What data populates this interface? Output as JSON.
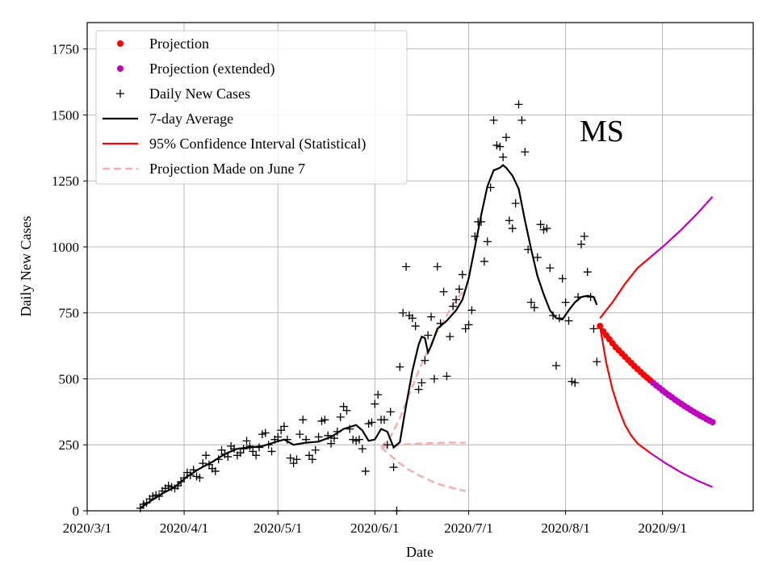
{
  "chart_data": {
    "type": "line",
    "annotation": "MS",
    "xlabel": "Date",
    "ylabel": "Daily New Cases",
    "xlim_days": [
      0,
      213
    ],
    "ylim": [
      0,
      1850
    ],
    "grid": true,
    "legend_position": "top-left",
    "x_ticks": [
      {
        "day": 0,
        "label": "2020/3/1"
      },
      {
        "day": 31,
        "label": "2020/4/1"
      },
      {
        "day": 61,
        "label": "2020/5/1"
      },
      {
        "day": 92,
        "label": "2020/6/1"
      },
      {
        "day": 122,
        "label": "2020/7/1"
      },
      {
        "day": 153,
        "label": "2020/8/1"
      },
      {
        "day": 184,
        "label": "2020/9/1"
      }
    ],
    "y_ticks": [
      {
        "value": 0,
        "label": "0"
      },
      {
        "value": 250,
        "label": "250"
      },
      {
        "value": 500,
        "label": "500"
      },
      {
        "value": 750,
        "label": "750"
      },
      {
        "value": 1000,
        "label": "1000"
      },
      {
        "value": 1250,
        "label": "1250"
      },
      {
        "value": 1500,
        "label": "1500"
      },
      {
        "value": 1750,
        "label": "1750"
      }
    ],
    "legend": [
      {
        "label": "Projection",
        "style": "dot",
        "color": "#ff0000"
      },
      {
        "label": "Projection (extended)",
        "style": "dot",
        "color": "#bf00bf"
      },
      {
        "label": "Daily New Cases",
        "style": "plus",
        "color": "#000000"
      },
      {
        "label": "7-day Average",
        "style": "line",
        "color": "#000000"
      },
      {
        "label": "95% Confidence Interval (Statistical)",
        "style": "line",
        "color": "#ff0000"
      },
      {
        "label": "Projection Made on June 7",
        "style": "dashed",
        "color": "#f4b0b0"
      }
    ],
    "daily_new_cases": [
      [
        17,
        10
      ],
      [
        18,
        25
      ],
      [
        19,
        30
      ],
      [
        20,
        45
      ],
      [
        21,
        55
      ],
      [
        22,
        60
      ],
      [
        23,
        55
      ],
      [
        24,
        75
      ],
      [
        25,
        85
      ],
      [
        26,
        95
      ],
      [
        27,
        90
      ],
      [
        28,
        85
      ],
      [
        29,
        95
      ],
      [
        30,
        110
      ],
      [
        31,
        125
      ],
      [
        32,
        145
      ],
      [
        33,
        135
      ],
      [
        34,
        155
      ],
      [
        35,
        130
      ],
      [
        36,
        125
      ],
      [
        37,
        180
      ],
      [
        38,
        210
      ],
      [
        39,
        175
      ],
      [
        40,
        160
      ],
      [
        41,
        150
      ],
      [
        42,
        195
      ],
      [
        43,
        230
      ],
      [
        44,
        215
      ],
      [
        45,
        205
      ],
      [
        46,
        245
      ],
      [
        47,
        235
      ],
      [
        48,
        210
      ],
      [
        49,
        220
      ],
      [
        50,
        235
      ],
      [
        51,
        265
      ],
      [
        52,
        245
      ],
      [
        53,
        225
      ],
      [
        54,
        210
      ],
      [
        55,
        240
      ],
      [
        56,
        290
      ],
      [
        57,
        295
      ],
      [
        58,
        250
      ],
      [
        59,
        225
      ],
      [
        60,
        270
      ],
      [
        61,
        280
      ],
      [
        62,
        305
      ],
      [
        63,
        320
      ],
      [
        64,
        270
      ],
      [
        65,
        200
      ],
      [
        66,
        180
      ],
      [
        67,
        195
      ],
      [
        68,
        290
      ],
      [
        69,
        345
      ],
      [
        70,
        270
      ],
      [
        71,
        210
      ],
      [
        72,
        195
      ],
      [
        73,
        230
      ],
      [
        74,
        280
      ],
      [
        75,
        340
      ],
      [
        76,
        345
      ],
      [
        77,
        285
      ],
      [
        78,
        255
      ],
      [
        79,
        275
      ],
      [
        80,
        300
      ],
      [
        81,
        355
      ],
      [
        82,
        395
      ],
      [
        83,
        380
      ],
      [
        84,
        310
      ],
      [
        85,
        270
      ],
      [
        86,
        265
      ],
      [
        87,
        270
      ],
      [
        88,
        235
      ],
      [
        89,
        150
      ],
      [
        90,
        330
      ],
      [
        91,
        335
      ],
      [
        92,
        405
      ],
      [
        93,
        440
      ],
      [
        94,
        345
      ],
      [
        95,
        345
      ],
      [
        96,
        250
      ],
      [
        97,
        375
      ],
      [
        98,
        165
      ],
      [
        99,
        0
      ],
      [
        100,
        545
      ],
      [
        101,
        750
      ],
      [
        102,
        925
      ],
      [
        103,
        740
      ],
      [
        104,
        730
      ],
      [
        105,
        700
      ],
      [
        106,
        460
      ],
      [
        107,
        485
      ],
      [
        108,
        570
      ],
      [
        109,
        665
      ],
      [
        110,
        735
      ],
      [
        111,
        500
      ],
      [
        112,
        925
      ],
      [
        113,
        710
      ],
      [
        114,
        830
      ],
      [
        115,
        510
      ],
      [
        116,
        660
      ],
      [
        117,
        775
      ],
      [
        118,
        800
      ],
      [
        119,
        840
      ],
      [
        120,
        895
      ],
      [
        121,
        690
      ],
      [
        122,
        705
      ],
      [
        123,
        760
      ],
      [
        124,
        1040
      ],
      [
        125,
        1095
      ],
      [
        126,
        1095
      ],
      [
        127,
        945
      ],
      [
        128,
        1020
      ],
      [
        129,
        1225
      ],
      [
        130,
        1480
      ],
      [
        131,
        1385
      ],
      [
        132,
        1380
      ],
      [
        133,
        1340
      ],
      [
        134,
        1415
      ],
      [
        135,
        1100
      ],
      [
        136,
        1070
      ],
      [
        137,
        1165
      ],
      [
        138,
        1540
      ],
      [
        139,
        1480
      ],
      [
        140,
        1360
      ],
      [
        141,
        990
      ],
      [
        142,
        790
      ],
      [
        143,
        770
      ],
      [
        144,
        960
      ],
      [
        145,
        1085
      ],
      [
        146,
        1065
      ],
      [
        147,
        1070
      ],
      [
        148,
        920
      ],
      [
        149,
        740
      ],
      [
        150,
        550
      ],
      [
        151,
        730
      ],
      [
        152,
        880
      ],
      [
        153,
        790
      ],
      [
        154,
        720
      ],
      [
        155,
        490
      ],
      [
        156,
        485
      ],
      [
        157,
        810
      ],
      [
        158,
        1010
      ],
      [
        159,
        1040
      ],
      [
        160,
        905
      ],
      [
        161,
        810
      ],
      [
        162,
        690
      ],
      [
        163,
        565
      ]
    ],
    "seven_day_average": [
      [
        17,
        10
      ],
      [
        20,
        35
      ],
      [
        24,
        65
      ],
      [
        28,
        90
      ],
      [
        32,
        130
      ],
      [
        36,
        160
      ],
      [
        40,
        185
      ],
      [
        44,
        215
      ],
      [
        48,
        235
      ],
      [
        52,
        240
      ],
      [
        56,
        245
      ],
      [
        60,
        260
      ],
      [
        63,
        270
      ],
      [
        66,
        250
      ],
      [
        70,
        258
      ],
      [
        74,
        262
      ],
      [
        78,
        280
      ],
      [
        82,
        310
      ],
      [
        86,
        325
      ],
      [
        88,
        305
      ],
      [
        90,
        265
      ],
      [
        92,
        270
      ],
      [
        94,
        310
      ],
      [
        96,
        300
      ],
      [
        98,
        240
      ],
      [
        100,
        260
      ],
      [
        102,
        400
      ],
      [
        104,
        530
      ],
      [
        106,
        630
      ],
      [
        107,
        660
      ],
      [
        108,
        655
      ],
      [
        109,
        600
      ],
      [
        110,
        625
      ],
      [
        112,
        690
      ],
      [
        115,
        720
      ],
      [
        118,
        760
      ],
      [
        120,
        800
      ],
      [
        122,
        880
      ],
      [
        124,
        1000
      ],
      [
        126,
        1120
      ],
      [
        128,
        1230
      ],
      [
        130,
        1290
      ],
      [
        132,
        1300
      ],
      [
        133,
        1310
      ],
      [
        134,
        1300
      ],
      [
        136,
        1270
      ],
      [
        138,
        1220
      ],
      [
        140,
        1100
      ],
      [
        142,
        990
      ],
      [
        144,
        890
      ],
      [
        146,
        820
      ],
      [
        148,
        760
      ],
      [
        150,
        730
      ],
      [
        152,
        725
      ],
      [
        154,
        760
      ],
      [
        156,
        790
      ],
      [
        158,
        810
      ],
      [
        160,
        815
      ],
      [
        162,
        810
      ],
      [
        163,
        780
      ]
    ],
    "projection": [
      [
        164,
        700
      ],
      [
        165,
        680
      ],
      [
        166,
        665
      ],
      [
        167,
        650
      ],
      [
        168,
        635
      ],
      [
        169,
        620
      ],
      [
        170,
        608
      ],
      [
        171,
        596
      ],
      [
        172,
        584
      ],
      [
        173,
        572
      ],
      [
        174,
        560
      ],
      [
        175,
        548
      ],
      [
        176,
        537
      ],
      [
        177,
        526
      ],
      [
        178,
        515
      ],
      [
        179,
        505
      ],
      [
        180,
        495
      ]
    ],
    "projection_extended": [
      [
        181,
        485
      ],
      [
        182,
        475
      ],
      [
        183,
        466
      ],
      [
        184,
        456
      ],
      [
        185,
        447
      ],
      [
        186,
        438
      ],
      [
        187,
        430
      ],
      [
        188,
        421
      ],
      [
        189,
        413
      ],
      [
        190,
        405
      ],
      [
        191,
        397
      ],
      [
        192,
        390
      ],
      [
        193,
        382
      ],
      [
        194,
        375
      ],
      [
        195,
        368
      ],
      [
        196,
        361
      ],
      [
        197,
        355
      ],
      [
        198,
        348
      ],
      [
        199,
        342
      ],
      [
        200,
        336
      ]
    ],
    "ci_upper": [
      [
        164,
        730
      ],
      [
        168,
        790
      ],
      [
        172,
        860
      ],
      [
        176,
        920
      ],
      [
        180,
        960
      ],
      [
        185,
        1010
      ],
      [
        190,
        1065
      ],
      [
        195,
        1125
      ],
      [
        200,
        1190
      ]
    ],
    "ci_lower": [
      [
        164,
        700
      ],
      [
        166,
        560
      ],
      [
        168,
        460
      ],
      [
        170,
        385
      ],
      [
        172,
        325
      ],
      [
        174,
        285
      ],
      [
        176,
        255
      ],
      [
        180,
        220
      ],
      [
        185,
        180
      ],
      [
        190,
        145
      ],
      [
        195,
        115
      ],
      [
        200,
        90
      ]
    ],
    "june7_projection": {
      "upper": [
        [
          94,
          240
        ],
        [
          97,
          280
        ],
        [
          100,
          350
        ],
        [
          103,
          440
        ],
        [
          106,
          530
        ],
        [
          109,
          610
        ],
        [
          112,
          680
        ],
        [
          115,
          740
        ],
        [
          118,
          800
        ],
        [
          121,
          840
        ]
      ],
      "center": [
        [
          94,
          240
        ],
        [
          97,
          245
        ],
        [
          100,
          250
        ],
        [
          103,
          253
        ],
        [
          106,
          255
        ],
        [
          109,
          256
        ],
        [
          112,
          257
        ],
        [
          115,
          258
        ],
        [
          118,
          258
        ],
        [
          121,
          258
        ]
      ],
      "lower": [
        [
          94,
          240
        ],
        [
          97,
          210
        ],
        [
          100,
          180
        ],
        [
          103,
          155
        ],
        [
          106,
          135
        ],
        [
          109,
          118
        ],
        [
          112,
          103
        ],
        [
          115,
          92
        ],
        [
          118,
          83
        ],
        [
          121,
          75
        ]
      ]
    }
  }
}
